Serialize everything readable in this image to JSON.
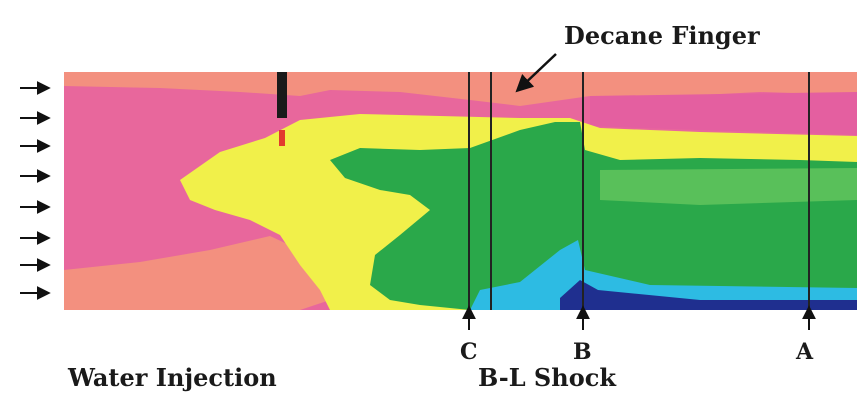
{
  "labels": {
    "decane_finger": "Decane Finger",
    "water_injection": "Water Injection",
    "bl_shock": "B-L Shock",
    "marker_c": "C",
    "marker_b": "B",
    "marker_a": "A"
  },
  "colors": {
    "pink": "#e8679c",
    "salmon": "#f3907f",
    "yellow": "#f1f04a",
    "green": "#2aa84a",
    "light_green": "#59c05a",
    "cyan": "#2dbbe3",
    "dark_blue": "#1f2f8f",
    "well": "#1a1a1a",
    "arrow": "#111111"
  },
  "icons": {
    "injection_arrow": "arrow-right-icon",
    "marker_arrow": "arrow-up-icon"
  }
}
